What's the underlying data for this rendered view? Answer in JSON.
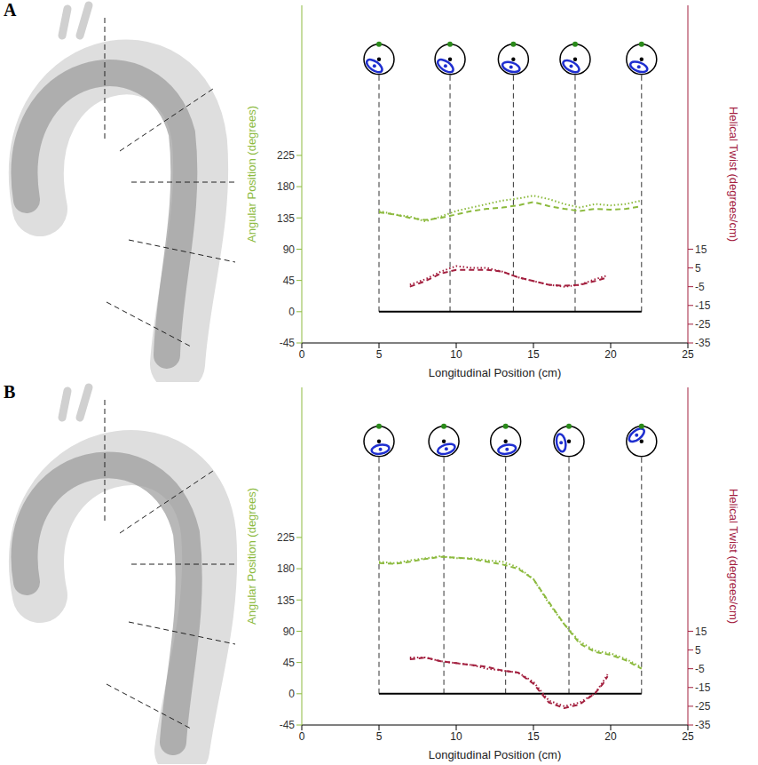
{
  "chart_data": [
    {
      "type": "line",
      "panel": "A",
      "x_label": "Longitudinal Position (cm)",
      "y_label": "Angular Position (degrees)",
      "y2_label": "Helical Twist (degrees/cm)",
      "xlim": [
        0,
        25
      ],
      "xticks": [
        0,
        5,
        10,
        15,
        20,
        25
      ],
      "ylim": [
        -45,
        441
      ],
      "yticks": [
        -45,
        0,
        45,
        90,
        135,
        180,
        225
      ],
      "y2lim": [
        -35,
        145
      ],
      "y2ticks": [
        -35,
        -25,
        -15,
        -5,
        5,
        15
      ],
      "cross_sections": [
        5,
        9.6,
        13.7,
        17.7,
        22
      ],
      "series": [
        {
          "color": "#8cba3e",
          "line_style": "dotted",
          "axis": "y",
          "x": [
            5,
            6,
            7,
            8,
            9,
            10,
            11,
            12,
            13,
            14,
            15,
            16,
            17,
            18,
            19,
            20,
            21,
            22
          ],
          "values": [
            145,
            140,
            137,
            130,
            137,
            145,
            150,
            155,
            160,
            163,
            167,
            162,
            155,
            150,
            155,
            153,
            155,
            160
          ]
        },
        {
          "color": "#8cba3e",
          "line_style": "dashed",
          "axis": "y",
          "x": [
            5,
            6,
            7,
            8,
            9,
            10,
            11,
            12,
            13,
            14,
            15,
            16,
            17,
            18,
            19,
            20,
            21,
            22
          ],
          "values": [
            143,
            140,
            135,
            132,
            135,
            140,
            145,
            148,
            150,
            153,
            158,
            152,
            148,
            145,
            148,
            147,
            148,
            152
          ]
        },
        {
          "color": "#a3203f",
          "line_style": "dotted",
          "axis": "y2",
          "x": [
            7,
            8,
            9,
            10,
            11,
            12,
            13,
            14,
            15,
            16,
            17,
            18,
            19,
            19.8
          ],
          "values": [
            -4,
            -1,
            3,
            6,
            5,
            5,
            3,
            0,
            -2,
            -4,
            -5,
            -4,
            -1,
            1
          ]
        },
        {
          "color": "#a3203f",
          "line_style": "dashed",
          "axis": "y2",
          "x": [
            7,
            8,
            9,
            10,
            11,
            12,
            13,
            14,
            15,
            16,
            17,
            18,
            19,
            19.8
          ],
          "values": [
            -5,
            -2,
            2,
            4,
            4,
            4,
            3,
            0,
            -2,
            -4,
            -4.5,
            -4,
            -2,
            0
          ]
        }
      ]
    },
    {
      "type": "line",
      "panel": "B",
      "x_label": "Longitudinal Position (cm)",
      "y_label": "Angular Position (degrees)",
      "y2_label": "Helical Twist (degrees/cm)",
      "xlim": [
        0,
        25
      ],
      "xticks": [
        0,
        5,
        10,
        15,
        20,
        25
      ],
      "ylim": [
        -45,
        441
      ],
      "yticks": [
        -45,
        0,
        45,
        90,
        135,
        180,
        225
      ],
      "y2lim": [
        -35,
        145
      ],
      "y2ticks": [
        -35,
        -25,
        -15,
        -5,
        5,
        15
      ],
      "cross_sections": [
        5,
        9.2,
        13.2,
        17.3,
        22
      ],
      "series": [
        {
          "color": "#8cba3e",
          "line_style": "dotted",
          "axis": "y",
          "x": [
            5,
            6,
            7,
            8,
            9,
            10,
            11,
            12,
            13,
            14,
            15,
            16,
            17,
            18,
            19,
            20,
            21,
            22
          ],
          "values": [
            190,
            188,
            192,
            195,
            198,
            195,
            195,
            192,
            190,
            182,
            165,
            130,
            100,
            75,
            62,
            58,
            50,
            38
          ]
        },
        {
          "color": "#8cba3e",
          "line_style": "dashed",
          "axis": "y",
          "x": [
            5,
            6,
            7,
            8,
            9,
            10,
            11,
            12,
            13,
            14,
            15,
            16,
            17,
            18,
            19,
            20,
            21,
            22
          ],
          "values": [
            188,
            187,
            190,
            194,
            197,
            196,
            194,
            190,
            186,
            180,
            165,
            132,
            100,
            72,
            60,
            56,
            48,
            36
          ]
        },
        {
          "color": "#a3203f",
          "line_style": "dotted",
          "axis": "y2",
          "x": [
            7,
            8,
            9,
            10,
            11,
            12,
            13,
            14,
            15,
            16,
            17,
            18,
            19,
            19.5,
            19.8
          ],
          "values": [
            1,
            1,
            -1,
            -2,
            -3,
            -5,
            -6,
            -7,
            -12,
            -22,
            -25,
            -23,
            -18,
            -12,
            -8
          ]
        },
        {
          "color": "#a3203f",
          "line_style": "dashed",
          "axis": "y2",
          "x": [
            7,
            8,
            9,
            10,
            11,
            12,
            13,
            14,
            15,
            16,
            17,
            18,
            19,
            19.5,
            19.8
          ],
          "values": [
            0,
            1,
            -1,
            -2,
            -3,
            -4,
            -6,
            -7,
            -13,
            -23,
            -26,
            -24,
            -18,
            -13,
            -9
          ]
        }
      ]
    }
  ]
}
